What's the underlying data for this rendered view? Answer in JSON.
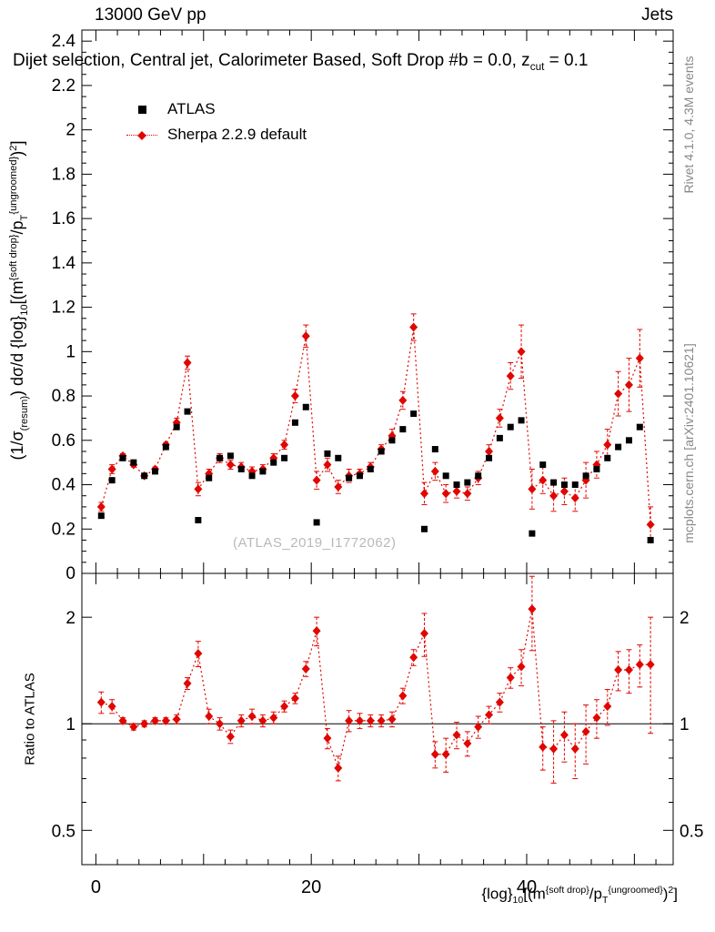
{
  "header": {
    "left": "13000 GeV pp",
    "right": "Jets"
  },
  "title": {
    "main": "Dijet selection, Central jet, Calorimeter Based, Soft Drop #b = 0.0, z",
    "sub": "cut",
    "tail": " = 0.1"
  },
  "legend": {
    "items": [
      {
        "label": "ATLAS"
      },
      {
        "label": "Sherpa 2.2.9 default"
      }
    ]
  },
  "watermark": "(ATLAS_2019_I1772062)",
  "side_notes": {
    "top": "Rivet 4.1.0,  4.3M events",
    "bottom": "mcplots.cern.ch [arXiv:2401.10621]"
  },
  "axis_labels": {
    "y_main": {
      "p1": "(1/σ",
      "s1": "(resum)",
      "p2": ") dσ/d {log}",
      "s2": "10",
      "p3": "[(m",
      "u3": "{soft drop}",
      "p4": "/p",
      "s4": "T",
      "u4": "{ungroomed}",
      "p5": ")",
      "u5": "2",
      "p6": "]"
    },
    "y_ratio": "Ratio to ATLAS",
    "x": {
      "p1": "{log}",
      "s1": "10",
      "p2": "[(m",
      "u2": "{soft drop}",
      "p3": "/p",
      "s3": "T",
      "u3": "{ungroomed}",
      "p4": ")",
      "u4": "2",
      "p5": "]"
    }
  },
  "colors": {
    "accent": "#e10600",
    "marker_black": "#000000",
    "grey_text": "#878787",
    "watermark": "#b9b9b9"
  },
  "chart_data": {
    "type": "scatter",
    "title": "Dijet selection, Central jet, Calorimeter Based, Soft Drop #b = 0.0, z_cut = 0.1",
    "xlabel": "{log}_10[(m^{soft drop}/p_T^{ungroomed})^2]",
    "ylabel": "(1/sigma_resum) dsigma/d {log}_10[(m^{soft drop}/p_T^{ungroomed})^2]",
    "x_values": [
      0.5,
      1.5,
      2.5,
      3.5,
      4.5,
      5.5,
      6.5,
      7.5,
      8.5,
      9.5,
      10.5,
      11.5,
      12.5,
      13.5,
      14.5,
      15.5,
      16.5,
      17.5,
      18.5,
      19.5,
      20.5,
      21.5,
      22.5,
      23.5,
      24.5,
      25.5,
      26.5,
      27.5,
      28.5,
      29.5,
      30.5,
      31.5,
      32.5,
      33.5,
      34.5,
      35.5,
      36.5,
      37.5,
      38.5,
      39.5,
      40.5,
      41.5,
      42.5,
      43.5,
      44.5,
      45.5,
      46.5,
      47.5,
      48.5,
      49.5,
      50.5,
      51.5
    ],
    "series": [
      {
        "name": "ATLAS",
        "marker": "square",
        "color": "#000000",
        "values": [
          0.26,
          0.42,
          0.52,
          0.5,
          0.44,
          0.46,
          0.57,
          0.66,
          0.73,
          0.24,
          0.43,
          0.52,
          0.53,
          0.47,
          0.44,
          0.46,
          0.5,
          0.52,
          0.68,
          0.75,
          0.23,
          0.54,
          0.52,
          0.43,
          0.44,
          0.47,
          0.55,
          0.6,
          0.65,
          0.72,
          0.2,
          0.56,
          0.44,
          0.4,
          0.41,
          0.44,
          0.52,
          0.61,
          0.66,
          0.69,
          0.18,
          0.49,
          0.41,
          0.4,
          0.4,
          0.44,
          0.47,
          0.52,
          0.57,
          0.6,
          0.66,
          0.15
        ]
      },
      {
        "name": "Sherpa 2.2.9 default",
        "marker": "diamond",
        "color": "#e10600",
        "line_style": "dotted",
        "values": [
          0.3,
          0.47,
          0.53,
          0.49,
          0.44,
          0.47,
          0.58,
          0.68,
          0.95,
          0.38,
          0.45,
          0.52,
          0.49,
          0.48,
          0.46,
          0.47,
          0.52,
          0.58,
          0.8,
          1.07,
          0.42,
          0.49,
          0.39,
          0.44,
          0.45,
          0.48,
          0.56,
          0.62,
          0.78,
          1.11,
          0.36,
          0.46,
          0.36,
          0.37,
          0.36,
          0.43,
          0.55,
          0.7,
          0.89,
          1.0,
          0.38,
          0.42,
          0.35,
          0.37,
          0.34,
          0.42,
          0.49,
          0.58,
          0.81,
          0.85,
          0.97,
          0.22
        ],
        "errors": [
          0.02,
          0.02,
          0.01,
          0.01,
          0.01,
          0.01,
          0.01,
          0.02,
          0.03,
          0.03,
          0.02,
          0.02,
          0.02,
          0.02,
          0.02,
          0.02,
          0.02,
          0.02,
          0.03,
          0.05,
          0.04,
          0.03,
          0.03,
          0.03,
          0.02,
          0.02,
          0.02,
          0.03,
          0.04,
          0.06,
          0.05,
          0.04,
          0.04,
          0.03,
          0.03,
          0.03,
          0.03,
          0.04,
          0.06,
          0.12,
          0.09,
          0.06,
          0.07,
          0.06,
          0.06,
          0.08,
          0.06,
          0.07,
          0.1,
          0.12,
          0.13,
          0.08
        ]
      }
    ],
    "ratio_panel": {
      "ylabel": "Ratio to ATLAS",
      "scale": "log",
      "ylim": [
        0.4,
        2.66
      ],
      "ref_line": 1.0,
      "tick_values": [
        0.5,
        1,
        2
      ],
      "tick_labels": [
        "0.5",
        "1",
        "2"
      ],
      "minor_ticks": [
        0.4,
        0.6,
        0.7,
        0.8,
        0.9
      ],
      "values": [
        1.15,
        1.12,
        1.02,
        0.98,
        1.0,
        1.02,
        1.02,
        1.03,
        1.3,
        1.58,
        1.05,
        1.0,
        0.92,
        1.02,
        1.05,
        1.02,
        1.04,
        1.12,
        1.18,
        1.43,
        1.83,
        0.91,
        0.75,
        1.02,
        1.02,
        1.02,
        1.02,
        1.03,
        1.2,
        1.54,
        1.8,
        0.82,
        0.82,
        0.93,
        0.88,
        0.98,
        1.06,
        1.15,
        1.35,
        1.45,
        2.11,
        0.86,
        0.85,
        0.93,
        0.85,
        0.95,
        1.04,
        1.12,
        1.42,
        1.42,
        1.47,
        1.47
      ],
      "errors": [
        0.08,
        0.05,
        0.02,
        0.02,
        0.02,
        0.02,
        0.02,
        0.03,
        0.05,
        0.13,
        0.05,
        0.04,
        0.04,
        0.04,
        0.05,
        0.04,
        0.04,
        0.04,
        0.04,
        0.07,
        0.17,
        0.06,
        0.06,
        0.07,
        0.05,
        0.04,
        0.04,
        0.05,
        0.06,
        0.08,
        0.25,
        0.07,
        0.09,
        0.08,
        0.07,
        0.07,
        0.06,
        0.07,
        0.09,
        0.17,
        0.5,
        0.12,
        0.17,
        0.15,
        0.15,
        0.18,
        0.13,
        0.13,
        0.18,
        0.2,
        0.2,
        0.53
      ]
    },
    "axes": {
      "x": {
        "lim": [
          -1.3,
          53.6
        ],
        "labeled_ticks": [
          0,
          20,
          40
        ],
        "labels": [
          "0",
          "20",
          "40"
        ],
        "major_ticks": [
          0,
          10,
          20,
          30,
          40,
          50
        ],
        "minor_step": 2
      },
      "y_main": {
        "lim": [
          0,
          2.45
        ],
        "labeled_step": 0.2,
        "minor_step": 0.05,
        "tick_labels": [
          "0",
          "0.2",
          "0.4",
          "0.6",
          "0.8",
          "1",
          "1.2",
          "1.4",
          "1.6",
          "1.8",
          "2",
          "2.2",
          "2.4"
        ]
      }
    },
    "legend_position": "top-left",
    "grid": false
  }
}
